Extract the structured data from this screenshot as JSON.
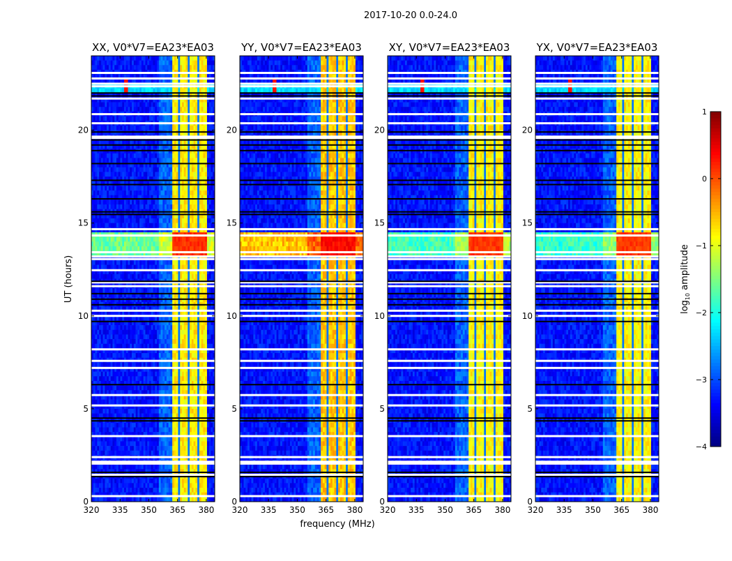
{
  "chart_data": {
    "type": "heatmap",
    "title": "2017-10-20 0.0-24.0",
    "xlabel": "frequency (MHz)",
    "ylabel": "UT (hours)",
    "xlim": [
      320,
      384.4
    ],
    "ylim": [
      0,
      24
    ],
    "xticks": [
      320,
      335,
      350,
      365,
      380
    ],
    "yticks": [
      0,
      5,
      10,
      15,
      20
    ],
    "panels": [
      {
        "title": "XX, V0*V7=EA23*EA03",
        "band_level": -0.8,
        "burst_level": 0.15,
        "burst_wide": -1.6
      },
      {
        "title": "YY, V0*V7=EA23*EA03",
        "band_level": -0.6,
        "burst_level": 0.35,
        "burst_wide": -0.6
      },
      {
        "title": "XY, V0*V7=EA23*EA03",
        "band_level": -0.85,
        "burst_level": 0.1,
        "burst_wide": -1.8
      },
      {
        "title": "YX, V0*V7=EA23*EA03",
        "band_level": -0.85,
        "burst_level": 0.1,
        "burst_wide": -1.9
      }
    ],
    "background_level": -3.3,
    "rfi_band_mhz": [
      362,
      380
    ],
    "rfi_gaps_mhz": [
      366,
      370.5,
      375.5
    ],
    "burst_hours": [
      13.2,
      14.6
    ],
    "point_source": {
      "freq_mhz": 338,
      "hour": 22.3,
      "level": 0.3
    },
    "flagged_white_hours": [
      23.08,
      22.78,
      22.5,
      22.36,
      21.7,
      20.86,
      20.37,
      19.65,
      19.58,
      14.67,
      14.33,
      13.43,
      13.2,
      13.06,
      12.46,
      11.8,
      11.6,
      10.28,
      10.0,
      8.2,
      7.58,
      7.2,
      5.74,
      5.18,
      3.53,
      2.4,
      2.15,
      2.05,
      1.45,
      0.3
    ],
    "flagged_black_hours": [
      22.0,
      21.84,
      19.9,
      19.47,
      19.2,
      18.9,
      18.2,
      17.3,
      17.07,
      16.3,
      15.6,
      15.46,
      11.86,
      11.2,
      10.9,
      10.6,
      9.7,
      6.3,
      4.5,
      4.35,
      1.58,
      1.35
    ],
    "colorbar": {
      "label": "log10 amplitude",
      "label_main": "log",
      "label_sub": "10",
      "label_rest": " amplitude",
      "range": [
        -4,
        1
      ],
      "ticks": [
        "1",
        "0",
        "−1",
        "−2",
        "−3",
        "−4"
      ],
      "colormap": "jet"
    }
  }
}
